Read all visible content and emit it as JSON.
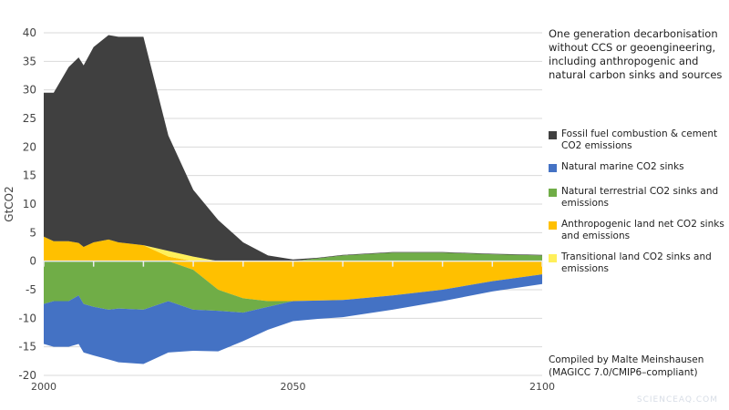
{
  "chart_data": {
    "type": "area",
    "stacked": true,
    "title": "One generation decarbonisation without CCS or geoengineering, including anthropogenic and natural carbon sinks and sources",
    "ylabel": "GtCO2",
    "xlabel": "",
    "xlim": [
      2000,
      2100
    ],
    "ylim": [
      -20,
      40
    ],
    "x_ticks": [
      2000,
      2050,
      2100
    ],
    "y_ticks": [
      -20,
      -15,
      -10,
      -5,
      0,
      5,
      10,
      15,
      20,
      25,
      30,
      35,
      40
    ],
    "grid": true,
    "legend_position": "right",
    "x": [
      2000,
      2002,
      2005,
      2007,
      2008,
      2010,
      2013,
      2015,
      2020,
      2025,
      2030,
      2035,
      2040,
      2045,
      2050,
      2055,
      2060,
      2070,
      2080,
      2090,
      2100
    ],
    "series": [
      {
        "name": "Fossil fuel combustion & cement CO2 emissions",
        "color": "#404040",
        "values": [
          25.2,
          26,
          30.5,
          32.5,
          31.8,
          34.2,
          35.8,
          36,
          36.5,
          20.2,
          11.7,
          7.2,
          3.3,
          1,
          0.3,
          0.1,
          0.1,
          0.1,
          0.1,
          0.1,
          0.1
        ]
      },
      {
        "name": "Natural marine CO2 sinks",
        "color": "#4472c4",
        "values": [
          -7,
          -8,
          -8,
          -8.5,
          -8.5,
          -8.5,
          -8.7,
          -9.4,
          -9.5,
          -9,
          -7.2,
          -7.1,
          -5,
          -4,
          -3.5,
          -3.2,
          -3,
          -2.5,
          -2,
          -1.8,
          -1.7
        ]
      },
      {
        "name": "Natural terrestrial CO2 sinks and emissions",
        "color": "#70ad47",
        "values": [
          -7.5,
          -7,
          -7,
          -6,
          -7.5,
          -8,
          -8.5,
          -8.3,
          -8.5,
          -7,
          -7,
          -3.7,
          -2.5,
          -1,
          0,
          0.5,
          1,
          1.5,
          1.5,
          1.2,
          1
        ]
      },
      {
        "name": "Anthropogenic land net CO2 sinks and emissions",
        "color": "#ffc000",
        "values": [
          4.3,
          3.5,
          3.5,
          3.2,
          2.5,
          3.3,
          3.8,
          3.3,
          2.8,
          0.8,
          -1.5,
          -5,
          -6.5,
          -7,
          -7,
          -6.9,
          -6.8,
          -6,
          -5,
          -3.5,
          -2.3
        ]
      },
      {
        "name": "Transitional land CO2 sinks and emissions",
        "color": "#ffef5a",
        "values": [
          0,
          0,
          0,
          0,
          0,
          0,
          0,
          0,
          0,
          1,
          0.8,
          0,
          0,
          0,
          0,
          0,
          0,
          0,
          0,
          0,
          0
        ]
      }
    ],
    "annotation": "Compiled by Malte Meinshausen (MAGICC 7.0/CMIP6–compliant)"
  },
  "watermark": "SCIENCEAQ.COM"
}
